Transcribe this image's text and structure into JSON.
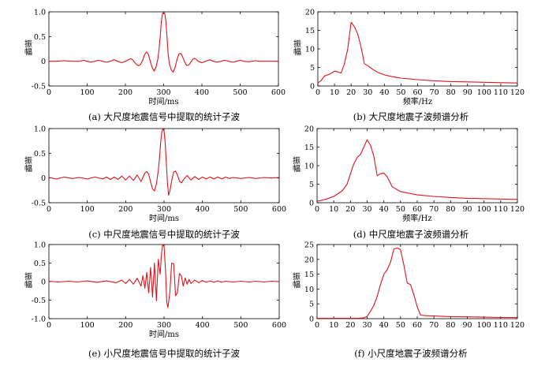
{
  "figure": {
    "background": "#ffffff",
    "line_color": "#e3121b"
  },
  "chart_data": [
    {
      "id": "a",
      "type": "line",
      "caption": "(a) 大尺度地震信号中提取的统计子波",
      "xlabel": "时间/ms",
      "ylabel": "振幅",
      "xlim": [
        0,
        600
      ],
      "ylim": [
        -0.5,
        1.0
      ],
      "xticks": [
        0,
        100,
        200,
        300,
        400,
        500,
        600
      ],
      "yticks": [
        -0.5,
        0,
        0.5,
        1.0
      ],
      "ytick_labels": [
        "-0.5",
        "0",
        "0.5",
        "1.0"
      ],
      "series": [
        {
          "x": [
            0,
            20,
            40,
            60,
            80,
            90,
            100,
            110,
            120,
            130,
            140,
            150,
            160,
            170,
            180,
            190,
            200,
            210,
            215,
            220,
            225,
            230,
            235,
            240,
            245,
            250,
            255,
            260,
            265,
            270,
            275,
            280,
            285,
            288,
            291,
            294,
            297,
            300,
            303,
            306,
            309,
            312,
            315,
            320,
            325,
            330,
            335,
            340,
            345,
            350,
            355,
            360,
            365,
            370,
            375,
            380,
            385,
            390,
            400,
            410,
            420,
            430,
            440,
            450,
            460,
            470,
            480,
            490,
            500,
            510,
            520,
            530,
            540,
            550,
            560,
            580,
            600
          ],
          "y": [
            0,
            0,
            0.01,
            0,
            0,
            0.02,
            0,
            -0.02,
            0,
            0.02,
            0,
            -0.02,
            0,
            0.03,
            0,
            -0.03,
            0,
            0.04,
            0.05,
            0.02,
            -0.03,
            -0.07,
            -0.09,
            -0.06,
            0.02,
            0.13,
            0.19,
            0.14,
            0.0,
            -0.13,
            -0.2,
            -0.12,
            0.05,
            0.25,
            0.5,
            0.8,
            0.96,
            1.0,
            0.96,
            0.8,
            0.45,
            0.12,
            -0.05,
            -0.18,
            -0.22,
            -0.12,
            0.04,
            0.15,
            0.16,
            0.08,
            -0.02,
            -0.08,
            -0.08,
            -0.03,
            0.03,
            0.06,
            0.04,
            0.0,
            -0.03,
            0,
            0.03,
            0,
            -0.02,
            0,
            0.02,
            0,
            -0.02,
            0,
            0.02,
            0,
            -0.01,
            0,
            0.01,
            0,
            0,
            0,
            0
          ]
        }
      ]
    },
    {
      "id": "b",
      "type": "line",
      "caption": "(b) 大尺度地震子波频谱分析",
      "xlabel": "频率/Hz",
      "ylabel": "振幅",
      "xlim": [
        0,
        120
      ],
      "ylim": [
        0,
        20
      ],
      "xticks": [
        0,
        10,
        20,
        30,
        40,
        50,
        60,
        70,
        80,
        90,
        100,
        110,
        120
      ],
      "yticks": [
        0,
        5,
        10,
        15,
        20
      ],
      "ytick_labels": [
        "0",
        "5",
        "10",
        "15",
        "20"
      ],
      "series": [
        {
          "x": [
            0,
            2,
            4,
            6,
            8,
            10,
            12,
            14,
            16,
            18,
            20,
            22,
            24,
            26,
            28,
            30,
            32,
            34,
            36,
            40,
            45,
            50,
            60,
            70,
            80,
            90,
            100,
            110,
            120
          ],
          "y": [
            0.8,
            1.5,
            2.7,
            3.0,
            3.4,
            4.0,
            3.8,
            3.5,
            6.0,
            10.0,
            17.2,
            16.0,
            14.0,
            10.5,
            6.0,
            5.5,
            4.8,
            4.2,
            3.7,
            3.0,
            2.5,
            2.1,
            1.7,
            1.4,
            1.2,
            1.1,
            1.0,
            0.9,
            0.8
          ]
        }
      ]
    },
    {
      "id": "c",
      "type": "line",
      "caption": "(c) 中尺度地震信号中提取的统计子波",
      "xlabel": "时间/ms",
      "ylabel": "振幅",
      "xlim": [
        0,
        600
      ],
      "ylim": [
        -0.5,
        1.0
      ],
      "xticks": [
        0,
        100,
        200,
        300,
        400,
        500,
        600
      ],
      "yticks": [
        -0.5,
        0,
        0.5,
        1.0
      ],
      "ytick_labels": [
        "-0.5",
        "0",
        "0.5",
        "1.0"
      ],
      "series": [
        {
          "x": [
            0,
            20,
            40,
            60,
            80,
            100,
            120,
            140,
            150,
            160,
            170,
            180,
            190,
            200,
            210,
            220,
            230,
            240,
            250,
            255,
            260,
            265,
            270,
            275,
            280,
            285,
            288,
            291,
            294,
            297,
            300,
            303,
            306,
            309,
            312,
            315,
            320,
            325,
            330,
            335,
            340,
            345,
            350,
            360,
            370,
            380,
            390,
            400,
            410,
            420,
            430,
            440,
            450,
            460,
            470,
            480,
            500,
            520,
            540,
            560,
            580,
            600
          ],
          "y": [
            0.01,
            -0.02,
            0.02,
            -0.01,
            0.01,
            -0.02,
            0.02,
            -0.02,
            0.02,
            -0.03,
            0.02,
            -0.03,
            0.04,
            -0.04,
            0.04,
            -0.05,
            0.06,
            -0.07,
            0.1,
            0.13,
            0.08,
            -0.08,
            -0.22,
            -0.26,
            -0.12,
            0.15,
            0.4,
            0.7,
            0.92,
            1.0,
            0.95,
            0.7,
            0.3,
            -0.12,
            -0.35,
            -0.27,
            -0.05,
            0.12,
            0.14,
            0.06,
            -0.06,
            -0.1,
            -0.04,
            0.05,
            -0.04,
            0.03,
            -0.03,
            0.02,
            -0.02,
            0.02,
            -0.02,
            0.02,
            -0.02,
            0.02,
            -0.01,
            0.01,
            -0.01,
            0.01,
            -0.01,
            0.01,
            0,
            0.01
          ]
        }
      ]
    },
    {
      "id": "d",
      "type": "line",
      "caption": "(d) 中尺度地震子波频谱分析",
      "xlabel": "频率/Hz",
      "ylabel": "振幅",
      "xlim": [
        0,
        120
      ],
      "ylim": [
        0,
        20
      ],
      "xticks": [
        0,
        10,
        20,
        30,
        40,
        50,
        60,
        70,
        80,
        90,
        100,
        110,
        120
      ],
      "yticks": [
        0,
        5,
        10,
        15,
        20
      ],
      "ytick_labels": [
        "0",
        "5",
        "10",
        "15",
        "20"
      ],
      "series": [
        {
          "x": [
            0,
            5,
            10,
            15,
            18,
            20,
            22,
            24,
            26,
            28,
            30,
            32,
            34,
            36,
            38,
            40,
            42,
            45,
            50,
            60,
            70,
            80,
            90,
            100,
            110,
            120
          ],
          "y": [
            0.4,
            0.9,
            1.7,
            3.2,
            5.0,
            7.8,
            10.5,
            12.2,
            13.0,
            15.0,
            17.0,
            15.5,
            12.5,
            7.3,
            7.8,
            8.0,
            7.0,
            4.3,
            3.0,
            2.1,
            1.7,
            1.4,
            1.2,
            1.1,
            1.0,
            0.9
          ]
        }
      ]
    },
    {
      "id": "e",
      "type": "line",
      "caption": "(e) 小尺度地震信号中提取的统计子波",
      "xlabel": "时间/ms",
      "ylabel": "振幅",
      "xlim": [
        0,
        600
      ],
      "ylim": [
        -1.0,
        1.0
      ],
      "xticks": [
        0,
        100,
        200,
        300,
        400,
        500,
        600
      ],
      "yticks": [
        -1.0,
        -0.5,
        0,
        0.5,
        1.0
      ],
      "ytick_labels": [
        "-1.0",
        "-0.5",
        "0",
        "0.5",
        "1.0"
      ],
      "series": [
        {
          "x": [
            0,
            25,
            50,
            75,
            100,
            125,
            150,
            175,
            190,
            200,
            210,
            220,
            230,
            240,
            245,
            250,
            255,
            260,
            265,
            270,
            275,
            280,
            285,
            290,
            293,
            296,
            300,
            304,
            307,
            310,
            315,
            320,
            325,
            330,
            335,
            340,
            345,
            350,
            355,
            360,
            365,
            370,
            380,
            390,
            400,
            410,
            420,
            430,
            440,
            450,
            460,
            480,
            500,
            520,
            540,
            560,
            580,
            600
          ],
          "y": [
            0.01,
            -0.01,
            0.01,
            -0.01,
            0.02,
            -0.02,
            0.02,
            -0.03,
            0.04,
            -0.05,
            0.06,
            -0.07,
            0.09,
            -0.12,
            0.16,
            -0.18,
            0.25,
            -0.3,
            0.38,
            -0.42,
            0.5,
            -0.52,
            0.6,
            0.2,
            0.7,
            1.0,
            0.95,
            0.3,
            -0.55,
            -0.7,
            -0.3,
            0.5,
            0.48,
            -0.38,
            -0.3,
            0.22,
            0.16,
            -0.12,
            0.1,
            -0.07,
            0.06,
            -0.05,
            0.04,
            -0.03,
            0.03,
            -0.02,
            0.02,
            -0.02,
            0.02,
            -0.02,
            0.01,
            -0.01,
            0.01,
            -0.01,
            0.01,
            -0.01,
            0.01,
            0
          ]
        }
      ]
    },
    {
      "id": "f",
      "type": "line",
      "caption": "(f) 小尺度地震子波频谱分析",
      "xlabel": "",
      "ylabel": "振幅",
      "xlim": [
        0,
        120
      ],
      "ylim": [
        0,
        25
      ],
      "xticks": [
        0,
        10,
        20,
        30,
        40,
        50,
        60,
        70,
        80,
        90,
        100,
        110,
        120
      ],
      "yticks": [
        0,
        5,
        10,
        15,
        20,
        25
      ],
      "ytick_labels": [
        "0",
        "5",
        "10",
        "15",
        "20",
        "25"
      ],
      "series": [
        {
          "x": [
            0,
            10,
            20,
            25,
            28,
            30,
            32,
            34,
            36,
            38,
            40,
            42,
            44,
            46,
            48,
            50,
            52,
            54,
            56,
            58,
            60,
            62,
            65,
            70,
            80,
            90,
            100,
            110,
            120
          ],
          "y": [
            0.1,
            0.1,
            0.1,
            0.15,
            0.3,
            0.8,
            2.5,
            4.5,
            7.5,
            11.5,
            15.0,
            16.5,
            19.0,
            23.5,
            23.8,
            23.3,
            18.0,
            12.0,
            11.5,
            8.0,
            4.0,
            1.2,
            1.0,
            0.9,
            0.7,
            0.6,
            0.5,
            0.4,
            0.4
          ]
        }
      ]
    }
  ]
}
